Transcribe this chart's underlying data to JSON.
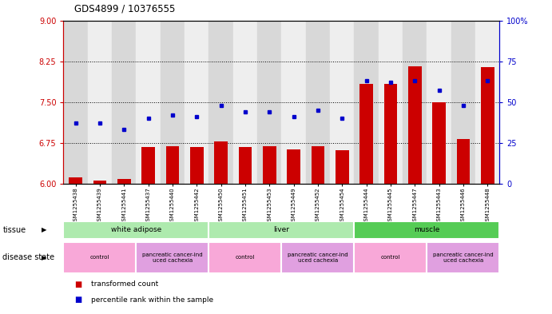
{
  "title": "GDS4899 / 10376555",
  "samples": [
    "GSM1255438",
    "GSM1255439",
    "GSM1255441",
    "GSM1255437",
    "GSM1255440",
    "GSM1255442",
    "GSM1255450",
    "GSM1255451",
    "GSM1255453",
    "GSM1255449",
    "GSM1255452",
    "GSM1255454",
    "GSM1255444",
    "GSM1255445",
    "GSM1255447",
    "GSM1255443",
    "GSM1255446",
    "GSM1255448"
  ],
  "red_values": [
    6.12,
    6.06,
    6.09,
    6.68,
    6.69,
    6.68,
    6.78,
    6.68,
    6.69,
    6.63,
    6.69,
    6.62,
    7.84,
    7.84,
    8.15,
    7.5,
    6.82,
    8.14
  ],
  "blue_values": [
    37,
    37,
    33,
    40,
    42,
    41,
    48,
    44,
    44,
    41,
    45,
    40,
    63,
    62,
    63,
    57,
    48,
    63
  ],
  "ylim_left": [
    6,
    9
  ],
  "ylim_right": [
    0,
    100
  ],
  "yticks_left": [
    6,
    6.75,
    7.5,
    8.25,
    9
  ],
  "yticks_right": [
    0,
    25,
    50,
    75,
    100
  ],
  "hlines": [
    6.75,
    7.5,
    8.25
  ],
  "tissue_groups": [
    {
      "label": "white adipose",
      "start": 0,
      "end": 5,
      "color": "#aeeaae"
    },
    {
      "label": "liver",
      "start": 6,
      "end": 11,
      "color": "#aeeaae"
    },
    {
      "label": "muscle",
      "start": 12,
      "end": 17,
      "color": "#55cc55"
    }
  ],
  "disease_groups": [
    {
      "label": "control",
      "start": 0,
      "end": 2,
      "color": "#f8a8d8"
    },
    {
      "label": "pancreatic cancer-ind\nuced cachexia",
      "start": 3,
      "end": 5,
      "color": "#e0a0e0"
    },
    {
      "label": "control",
      "start": 6,
      "end": 8,
      "color": "#f8a8d8"
    },
    {
      "label": "pancreatic cancer-ind\nuced cachexia",
      "start": 9,
      "end": 11,
      "color": "#e0a0e0"
    },
    {
      "label": "control",
      "start": 12,
      "end": 14,
      "color": "#f8a8d8"
    },
    {
      "label": "pancreatic cancer-ind\nuced cachexia",
      "start": 15,
      "end": 17,
      "color": "#e0a0e0"
    }
  ],
  "red_color": "#CC0000",
  "blue_color": "#0000CC",
  "bar_width": 0.55
}
